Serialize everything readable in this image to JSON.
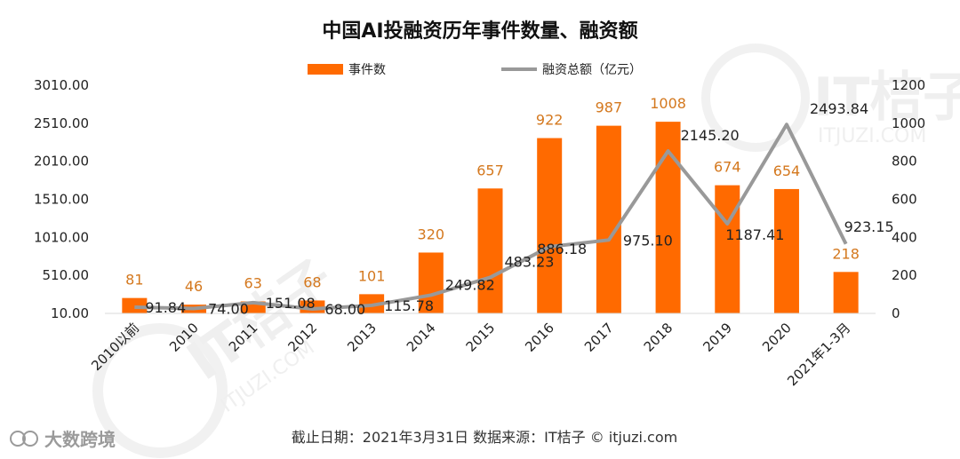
{
  "chart_data": {
    "type": "bar+line",
    "title": "中国AI投融资历年事件数量、融资额",
    "categories": [
      "2010以前",
      "2010",
      "2011",
      "2012",
      "2013",
      "2014",
      "2015",
      "2016",
      "2017",
      "2018",
      "2019",
      "2020",
      "2021年1-3月"
    ],
    "series": [
      {
        "name": "事件数",
        "type": "bar",
        "axis": "right",
        "color": "#ff6a00",
        "values": [
          81,
          46,
          63,
          68,
          101,
          320,
          657,
          922,
          987,
          1008,
          674,
          654,
          218
        ]
      },
      {
        "name": "融资总额（亿元）",
        "type": "line",
        "axis": "left",
        "color": "#999999",
        "values": [
          91.84,
          74.0,
          151.08,
          68.0,
          115.78,
          249.82,
          483.23,
          886.18,
          975.1,
          2145.2,
          1187.41,
          2493.84,
          923.15
        ]
      }
    ],
    "bar_labels": [
      "81",
      "46",
      "63",
      "68",
      "101",
      "320",
      "657",
      "922",
      "987",
      "1008",
      "674",
      "654",
      "218"
    ],
    "line_labels": [
      "91.84",
      "74.00",
      "151.08",
      "68.00",
      "115.78",
      "249.82",
      "483.23",
      "886.18",
      "975.10",
      "2145.20",
      "1187.41",
      "2493.84",
      "923.15"
    ],
    "left_axis": {
      "min": 10,
      "max": 3010,
      "ticks": [
        "3010.00",
        "2510.00",
        "2010.00",
        "1510.00",
        "1010.00",
        "510.00",
        "10.00"
      ]
    },
    "right_axis": {
      "min": 0,
      "max": 1200,
      "ticks": [
        "1200",
        "1000",
        "800",
        "600",
        "400",
        "200",
        "0"
      ]
    },
    "legend_position": "top-center",
    "grid": false
  },
  "footer": {
    "text": "截止日期：2021年3月31日    数据来源：IT桔子 © itjuzi.com"
  },
  "watermark": {
    "text": "大数跨境",
    "logo_text": "IT桔子",
    "logo_url_text": "ITJUZI.COM"
  }
}
